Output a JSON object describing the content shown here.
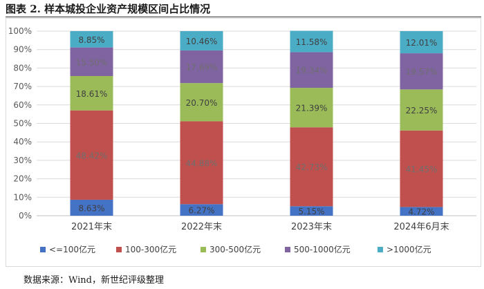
{
  "figure": {
    "title": "图表 2.  样本城投企业资产规模区间占比情况",
    "source": "数据来源：Wind，新世纪评级整理"
  },
  "chart_data": {
    "type": "bar",
    "stacked": true,
    "title": "",
    "xlabel": "",
    "ylabel": "",
    "ylim": [
      0,
      100
    ],
    "yticks": [
      "0%",
      "10%",
      "20%",
      "30%",
      "40%",
      "50%",
      "60%",
      "70%",
      "80%",
      "90%",
      "100%"
    ],
    "categories": [
      "2021年末",
      "2022年末",
      "2023年末",
      "2024年6月末"
    ],
    "legend_position": "bottom",
    "series": [
      {
        "name": "<=100亿元",
        "color": "#4472C4",
        "values": [
          8.63,
          6.27,
          5.15,
          4.72
        ],
        "labels": [
          "8.63%",
          "6.27%",
          "5.15%",
          "4.72%"
        ]
      },
      {
        "name": "100-300亿元",
        "color": "#C0504D",
        "values": [
          48.42,
          44.88,
          42.73,
          41.45
        ],
        "labels": [
          "48.42%",
          "44.88%",
          "42.73%",
          "41.45%"
        ]
      },
      {
        "name": "300-500亿元",
        "color": "#9BBB59",
        "values": [
          18.61,
          20.7,
          21.39,
          22.25
        ],
        "labels": [
          "18.61%",
          "20.70%",
          "21.39%",
          "22.25%"
        ]
      },
      {
        "name": "500-1000亿元",
        "color": "#8064A2",
        "values": [
          15.5,
          17.69,
          19.34,
          19.57
        ],
        "labels": [
          "15.50%",
          "17.69%",
          "19.34%",
          "19.57%"
        ]
      },
      {
        "name": ">1000亿元",
        "color": "#4BACC6",
        "values": [
          8.85,
          10.46,
          11.58,
          12.01
        ],
        "labels": [
          "8.85%",
          "10.46%",
          "11.58%",
          "12.01%"
        ]
      }
    ]
  }
}
